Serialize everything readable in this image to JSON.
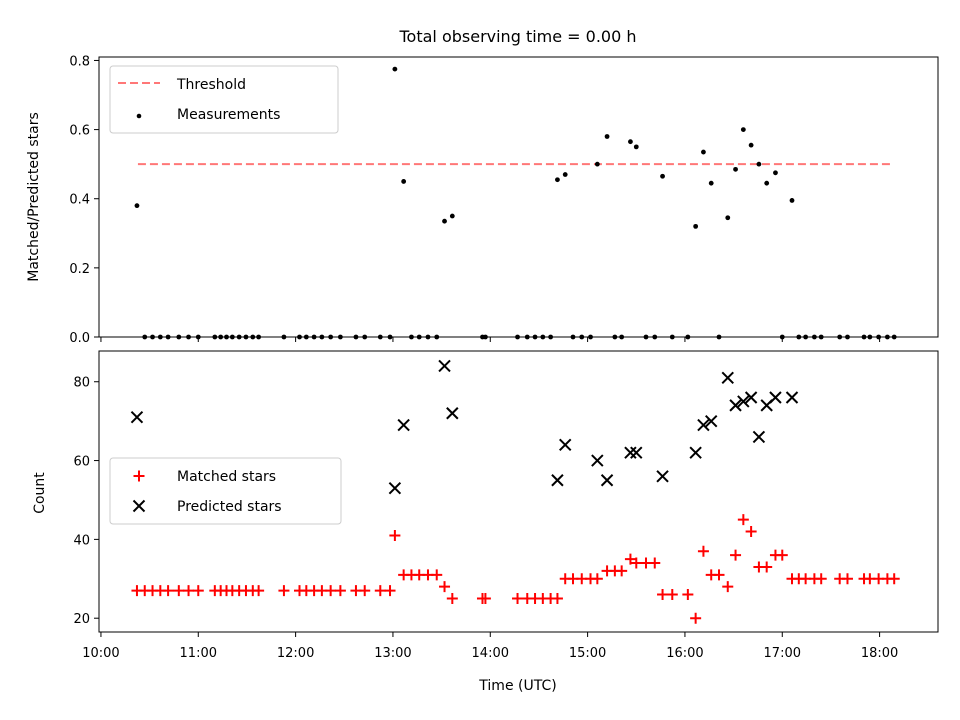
{
  "chart_data": {
    "type": "scatter",
    "title": "Total observing time = 0.00 h",
    "xlabel": "Time (UTC)",
    "x_ticks": [
      "10:00",
      "11:00",
      "12:00",
      "13:00",
      "14:00",
      "15:00",
      "16:00",
      "17:00",
      "18:00"
    ],
    "x_unit": "hours UTC",
    "xlim": [
      9.98,
      18.6
    ],
    "colors": {
      "threshold": "#ff7777",
      "measurements": "#000000",
      "matched": "#ff0000",
      "predicted": "#000000"
    },
    "top": {
      "ylabel": "Matched/Predicted stars",
      "ylim": [
        0,
        0.81
      ],
      "y_ticks": [
        "0.0",
        "0.2",
        "0.4",
        "0.6",
        "0.8"
      ],
      "threshold": {
        "name": "Threshold",
        "value": 0.5,
        "x_range": [
          10.38,
          18.14
        ]
      },
      "measurements_name": "Measurements",
      "legend": [
        "Threshold",
        "Measurements"
      ],
      "legend_loc": "upper left",
      "measurements": [
        [
          10.37,
          0.38
        ],
        [
          10.45,
          0.0
        ],
        [
          10.53,
          0.0
        ],
        [
          10.61,
          0.0
        ],
        [
          10.69,
          0.0
        ],
        [
          10.8,
          0.0
        ],
        [
          10.9,
          0.0
        ],
        [
          11.0,
          0.0
        ],
        [
          11.17,
          0.0
        ],
        [
          11.23,
          0.0
        ],
        [
          11.29,
          0.0
        ],
        [
          11.35,
          0.0
        ],
        [
          11.42,
          0.0
        ],
        [
          11.49,
          0.0
        ],
        [
          11.56,
          0.0
        ],
        [
          11.62,
          0.0
        ],
        [
          11.88,
          0.0
        ],
        [
          12.04,
          0.0
        ],
        [
          12.11,
          0.0
        ],
        [
          12.19,
          0.0
        ],
        [
          12.27,
          0.0
        ],
        [
          12.36,
          0.0
        ],
        [
          12.46,
          0.0
        ],
        [
          12.62,
          0.0
        ],
        [
          12.71,
          0.0
        ],
        [
          12.87,
          0.0
        ],
        [
          12.97,
          0.0
        ],
        [
          13.02,
          0.775
        ],
        [
          13.11,
          0.45
        ],
        [
          13.19,
          0.0
        ],
        [
          13.27,
          0.0
        ],
        [
          13.36,
          0.0
        ],
        [
          13.45,
          0.0
        ],
        [
          13.53,
          0.335
        ],
        [
          13.61,
          0.35
        ],
        [
          13.92,
          0.0
        ],
        [
          13.95,
          0.0
        ],
        [
          14.28,
          0.0
        ],
        [
          14.38,
          0.0
        ],
        [
          14.46,
          0.0
        ],
        [
          14.54,
          0.0
        ],
        [
          14.62,
          0.0
        ],
        [
          14.69,
          0.455
        ],
        [
          14.77,
          0.47
        ],
        [
          14.85,
          0.0
        ],
        [
          14.94,
          0.0
        ],
        [
          15.03,
          0.0
        ],
        [
          15.1,
          0.5
        ],
        [
          15.2,
          0.58
        ],
        [
          15.28,
          0.0
        ],
        [
          15.35,
          0.0
        ],
        [
          15.44,
          0.565
        ],
        [
          15.5,
          0.55
        ],
        [
          15.6,
          0.0
        ],
        [
          15.69,
          0.0
        ],
        [
          15.77,
          0.465
        ],
        [
          15.87,
          0.0
        ],
        [
          16.03,
          0.0
        ],
        [
          16.11,
          0.32
        ],
        [
          16.19,
          0.535
        ],
        [
          16.27,
          0.445
        ],
        [
          16.35,
          0.0
        ],
        [
          16.44,
          0.345
        ],
        [
          16.52,
          0.485
        ],
        [
          16.6,
          0.6
        ],
        [
          16.68,
          0.555
        ],
        [
          16.76,
          0.5
        ],
        [
          16.84,
          0.445
        ],
        [
          16.93,
          0.475
        ],
        [
          17.0,
          0.0
        ],
        [
          17.1,
          0.395
        ],
        [
          17.17,
          0.0
        ],
        [
          17.24,
          0.0
        ],
        [
          17.33,
          0.0
        ],
        [
          17.4,
          0.0
        ],
        [
          17.59,
          0.0
        ],
        [
          17.67,
          0.0
        ],
        [
          17.84,
          0.0
        ],
        [
          17.9,
          0.0
        ],
        [
          17.99,
          0.0
        ],
        [
          18.08,
          0.0
        ],
        [
          18.15,
          0.0
        ]
      ]
    },
    "bottom": {
      "ylabel": "Count",
      "ylim": [
        16.5,
        87.8
      ],
      "y_ticks": [
        "20",
        "40",
        "60",
        "80"
      ],
      "matched_name": "Matched stars",
      "predicted_name": "Predicted stars",
      "legend": [
        "Matched stars",
        "Predicted stars"
      ],
      "legend_loc": "center left",
      "matched": [
        [
          10.37,
          27
        ],
        [
          10.45,
          27
        ],
        [
          10.53,
          27
        ],
        [
          10.61,
          27
        ],
        [
          10.69,
          27
        ],
        [
          10.8,
          27
        ],
        [
          10.9,
          27
        ],
        [
          11.0,
          27
        ],
        [
          11.17,
          27
        ],
        [
          11.23,
          27
        ],
        [
          11.29,
          27
        ],
        [
          11.35,
          27
        ],
        [
          11.42,
          27
        ],
        [
          11.49,
          27
        ],
        [
          11.56,
          27
        ],
        [
          11.62,
          27
        ],
        [
          11.88,
          27
        ],
        [
          12.04,
          27
        ],
        [
          12.11,
          27
        ],
        [
          12.19,
          27
        ],
        [
          12.27,
          27
        ],
        [
          12.36,
          27
        ],
        [
          12.46,
          27
        ],
        [
          12.62,
          27
        ],
        [
          12.71,
          27
        ],
        [
          12.87,
          27
        ],
        [
          12.97,
          27
        ],
        [
          13.02,
          41
        ],
        [
          13.11,
          31
        ],
        [
          13.19,
          31
        ],
        [
          13.27,
          31
        ],
        [
          13.36,
          31
        ],
        [
          13.45,
          31
        ],
        [
          13.53,
          28
        ],
        [
          13.61,
          25
        ],
        [
          13.92,
          25
        ],
        [
          13.95,
          25
        ],
        [
          14.28,
          25
        ],
        [
          14.38,
          25
        ],
        [
          14.46,
          25
        ],
        [
          14.54,
          25
        ],
        [
          14.62,
          25
        ],
        [
          14.69,
          25
        ],
        [
          14.77,
          30
        ],
        [
          14.85,
          30
        ],
        [
          14.94,
          30
        ],
        [
          15.03,
          30
        ],
        [
          15.1,
          30
        ],
        [
          15.2,
          32
        ],
        [
          15.28,
          32
        ],
        [
          15.35,
          32
        ],
        [
          15.44,
          35
        ],
        [
          15.5,
          34
        ],
        [
          15.6,
          34
        ],
        [
          15.69,
          34
        ],
        [
          15.77,
          26
        ],
        [
          15.87,
          26
        ],
        [
          16.03,
          26
        ],
        [
          16.11,
          20
        ],
        [
          16.19,
          37
        ],
        [
          16.27,
          31
        ],
        [
          16.35,
          31
        ],
        [
          16.44,
          28
        ],
        [
          16.52,
          36
        ],
        [
          16.6,
          45
        ],
        [
          16.68,
          42
        ],
        [
          16.76,
          33
        ],
        [
          16.84,
          33
        ],
        [
          16.93,
          36
        ],
        [
          17.0,
          36
        ],
        [
          17.1,
          30
        ],
        [
          17.17,
          30
        ],
        [
          17.24,
          30
        ],
        [
          17.33,
          30
        ],
        [
          17.4,
          30
        ],
        [
          17.59,
          30
        ],
        [
          17.67,
          30
        ],
        [
          17.84,
          30
        ],
        [
          17.9,
          30
        ],
        [
          17.99,
          30
        ],
        [
          18.08,
          30
        ],
        [
          18.15,
          30
        ]
      ],
      "predicted": [
        [
          10.37,
          71
        ],
        [
          13.02,
          53
        ],
        [
          13.11,
          69
        ],
        [
          13.53,
          84
        ],
        [
          13.61,
          72
        ],
        [
          14.69,
          55
        ],
        [
          14.77,
          64
        ],
        [
          15.1,
          60
        ],
        [
          15.2,
          55
        ],
        [
          15.44,
          62
        ],
        [
          15.5,
          62
        ],
        [
          15.77,
          56
        ],
        [
          16.11,
          62
        ],
        [
          16.19,
          69
        ],
        [
          16.27,
          70
        ],
        [
          16.44,
          81
        ],
        [
          16.52,
          74
        ],
        [
          16.6,
          75
        ],
        [
          16.68,
          76
        ],
        [
          16.76,
          66
        ],
        [
          16.84,
          74
        ],
        [
          16.93,
          76
        ],
        [
          17.1,
          76
        ]
      ]
    }
  }
}
